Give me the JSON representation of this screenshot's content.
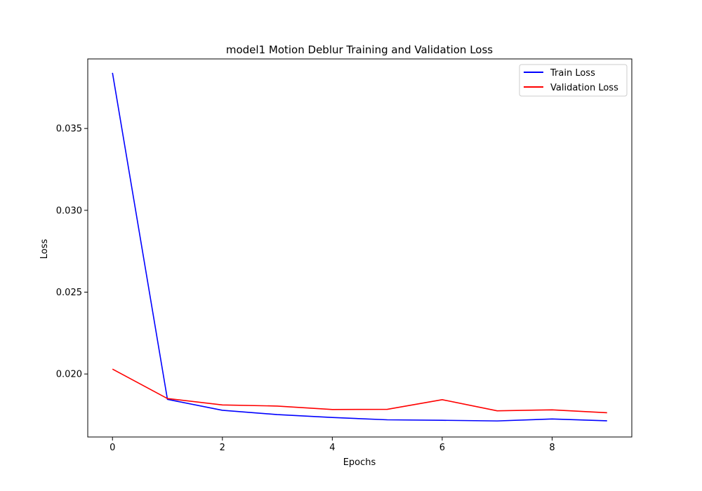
{
  "chart_data": {
    "type": "line",
    "title": "model1 Motion Deblur Training and Validation Loss",
    "xlabel": "Epochs",
    "ylabel": "Loss",
    "x": [
      0,
      1,
      2,
      3,
      4,
      5,
      6,
      7,
      8,
      9
    ],
    "xlim": [
      -0.45,
      9.45
    ],
    "ylim": [
      0.01615,
      0.03925
    ],
    "xticks": [
      0,
      2,
      4,
      6,
      8
    ],
    "xtick_labels": [
      "0",
      "2",
      "4",
      "6",
      "8"
    ],
    "yticks": [
      0.02,
      0.025,
      0.03,
      0.035
    ],
    "ytick_labels": [
      "0.020",
      "0.025",
      "0.030",
      "0.035"
    ],
    "grid": false,
    "legend_position": "top-right",
    "series": [
      {
        "name": "Train Loss",
        "color": "#0000ff",
        "values": [
          0.0384,
          0.01845,
          0.01778,
          0.01752,
          0.01734,
          0.0172,
          0.01717,
          0.01713,
          0.01725,
          0.01714
        ]
      },
      {
        "name": "Validation Loss",
        "color": "#ff0000",
        "values": [
          0.0203,
          0.0185,
          0.01811,
          0.01804,
          0.01783,
          0.01784,
          0.01843,
          0.01775,
          0.01781,
          0.01763
        ]
      }
    ]
  }
}
